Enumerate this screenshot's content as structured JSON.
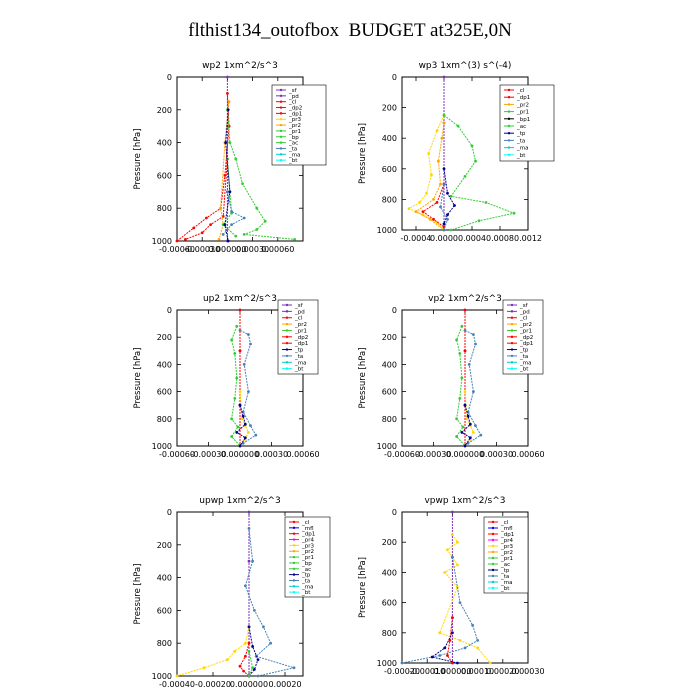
{
  "page_title": "flthist134_outofbox  BUDGET at325E,0N",
  "colors": {
    "sf": "#7b2fbf",
    "pd": "#7b2fbf",
    "cl": "#ff0000",
    "dp2": "#ff0000",
    "dp1": "#ff0000",
    "pr3": "#ffd700",
    "pr2": "#ffa500",
    "pr1": "#32cd32",
    "bp": "#32cd32",
    "ac": "#32cd32",
    "tp": "#00008b",
    "ta": "#4682b4",
    "ma": "#00ced1",
    "bt": "#00ffff",
    "mfl": "#0000ff",
    "pr4": "#ff00ff"
  },
  "chart_data": [
    {
      "type": "line",
      "title": "wp2  1xm^2/s^3",
      "ylabel": "Pressure [hPa]",
      "ylim": [
        1000,
        0
      ],
      "xlim": [
        -0.0006,
        0.0009
      ],
      "xticks": [
        "-0.00060",
        "-0.00030",
        "0.000000",
        "0.00030",
        "0.00060"
      ],
      "xtick_values": [
        -0.0006,
        -0.0003,
        0,
        0.0003,
        0.0006
      ],
      "yticks": [
        "0",
        "200",
        "400",
        "600",
        "800",
        "1000"
      ],
      "legend": [
        "_sf",
        "_pd",
        "_cl",
        "_dp2",
        "_dp1",
        "_pr3",
        "_pr2",
        "_pr1",
        "_bp",
        "_ac",
        "_ta",
        "_ma",
        "_bt"
      ],
      "series": [
        {
          "name": "_sf",
          "color": "#7b2fbf",
          "x": [
            0,
            0,
            0,
            0
          ],
          "y": [
            0,
            300,
            700,
            1000
          ]
        },
        {
          "name": "_cl",
          "color": "#ff0000",
          "x": [
            0,
            2e-05,
            -3e-05,
            -8e-05,
            -0.00025,
            -0.0004,
            -0.0006
          ],
          "y": [
            100,
            300,
            600,
            800,
            860,
            920,
            1000
          ]
        },
        {
          "name": "_dp1",
          "color": "#ff0000",
          "x": [
            0,
            -5e-05,
            -0.0002,
            -0.0003,
            -0.0005
          ],
          "y": [
            500,
            850,
            900,
            950,
            990
          ]
        },
        {
          "name": "_pr2",
          "color": "#ffa500",
          "x": [
            2e-05,
            -3e-05,
            -8e-05,
            -5e-05,
            -0.0001
          ],
          "y": [
            150,
            400,
            800,
            900,
            990
          ]
        },
        {
          "name": "_pr1",
          "color": "#32cd32",
          "x": [
            0,
            3e-05,
            0.0001,
            0.00018,
            0.00035,
            0.00045,
            0.00035,
            0.0002,
            0.0008
          ],
          "y": [
            200,
            400,
            500,
            650,
            800,
            880,
            930,
            960,
            990
          ]
        },
        {
          "name": "_ac",
          "color": "#32cd32",
          "x": [
            0,
            5e-05,
            -5e-05,
            0.0001
          ],
          "y": [
            500,
            830,
            900,
            970
          ]
        },
        {
          "name": "_ta",
          "color": "#4682b4",
          "x": [
            0,
            5e-05,
            0.0002,
            5e-05,
            -5e-05
          ],
          "y": [
            700,
            820,
            860,
            900,
            960
          ]
        },
        {
          "name": "_bt",
          "color": "#00008b",
          "x": [
            1e-05,
            -2e-05,
            3e-05,
            -3e-05,
            1e-05
          ],
          "y": [
            200,
            400,
            700,
            900,
            1000
          ]
        }
      ]
    },
    {
      "type": "line",
      "title": "wp3  1xm^(3) s^(-4)",
      "ylabel": "Pressure [hPa]",
      "ylim": [
        1000,
        0
      ],
      "xlim": [
        -0.0006,
        0.0012
      ],
      "xticks": [
        "-0.0004",
        "0.0000",
        "0.0004",
        "0.0008",
        "0.0012"
      ],
      "xtick_values": [
        -0.0004,
        0,
        0.0004,
        0.0008,
        0.0012
      ],
      "yticks": [
        "0",
        "200",
        "400",
        "600",
        "800",
        "1000"
      ],
      "legend": [
        "_cl",
        "_dp1",
        "_pr2",
        "_pr1",
        "_bp1",
        "_ac",
        "_tp",
        "_ta",
        "_ma",
        "_bt"
      ],
      "series": [
        {
          "name": "_cl",
          "color": "#7b2fbf",
          "x": [
            0,
            0,
            0,
            0
          ],
          "y": [
            0,
            300,
            700,
            1000
          ]
        },
        {
          "name": "_pr2",
          "color": "#ffd700",
          "x": [
            0,
            -0.0001,
            -0.00022,
            -0.00018,
            -0.00025,
            -0.00035,
            -0.0005,
            -0.0003,
            -0.0001,
            0
          ],
          "y": [
            250,
            350,
            500,
            640,
            760,
            820,
            860,
            900,
            950,
            1000
          ]
        },
        {
          "name": "_pr1",
          "color": "#ffa500",
          "x": [
            0,
            -3e-05,
            -8e-05,
            -5e-05,
            -0.00015,
            -0.0004,
            -0.0002,
            0
          ],
          "y": [
            300,
            400,
            550,
            700,
            800,
            880,
            930,
            1000
          ]
        },
        {
          "name": "_bp1",
          "color": "#32cd32",
          "x": [
            0,
            0.0002,
            0.0004,
            0.00045,
            0.0003,
            0.0001,
            0.0006,
            0.001,
            0.0005,
            0.0001
          ],
          "y": [
            250,
            320,
            450,
            550,
            650,
            780,
            820,
            890,
            940,
            1000
          ]
        },
        {
          "name": "_dp1",
          "color": "#ff0000",
          "x": [
            0,
            -0.0001,
            -0.0003,
            -0.00015,
            0
          ],
          "y": [
            700,
            820,
            880,
            930,
            980
          ]
        },
        {
          "name": "_tp",
          "color": "#00008b",
          "x": [
            0,
            5e-05,
            0.00015,
            5e-05,
            0
          ],
          "y": [
            600,
            760,
            840,
            900,
            960
          ]
        },
        {
          "name": "_ta",
          "color": "#4682b4",
          "x": [
            0,
            -5e-05,
            5e-05,
            0
          ],
          "y": [
            700,
            850,
            930,
            1000
          ]
        }
      ]
    },
    {
      "type": "line",
      "title": "up2  1xm^2/s^3",
      "ylabel": "Pressure [hPa]",
      "ylim": [
        1000,
        0
      ],
      "xlim": [
        -0.0006,
        0.0006
      ],
      "xticks": [
        "-0.00060",
        "-0.00030",
        "0.000000",
        "0.00030",
        "0.00060"
      ],
      "xtick_values": [
        -0.0006,
        -0.0003,
        0,
        0.0003,
        0.0006
      ],
      "yticks": [
        "0",
        "200",
        "400",
        "600",
        "800",
        "1000"
      ],
      "legend": [
        "_sf",
        "_pd",
        "_cl",
        "_pr2",
        "_pr1",
        "_dp2",
        "_dp1",
        "_tp",
        "_ta",
        "_ma",
        "_bt"
      ],
      "series": [
        {
          "name": "_sf",
          "color": "#7b2fbf",
          "x": [
            0,
            0,
            0,
            0
          ],
          "y": [
            0,
            300,
            700,
            1000
          ]
        },
        {
          "name": "_cl",
          "color": "#ff0000",
          "x": [
            0,
            0,
            0,
            0
          ],
          "y": [
            0,
            300,
            700,
            1000
          ]
        },
        {
          "name": "_pr1",
          "color": "#32cd32",
          "x": [
            -3e-05,
            -8e-05,
            -5e-05,
            -3e-05,
            -5e-05,
            -8e-05,
            -2e-05,
            -8e-05,
            0
          ],
          "y": [
            120,
            220,
            320,
            500,
            650,
            800,
            860,
            930,
            1000
          ]
        },
        {
          "name": "_pr2",
          "color": "#ffd700",
          "x": [
            0,
            2e-05,
            5e-05,
            8e-05,
            5e-05,
            0
          ],
          "y": [
            600,
            800,
            850,
            900,
            950,
            1000
          ]
        },
        {
          "name": "_tp",
          "color": "#4682b4",
          "x": [
            0,
            8e-05,
            0.0001,
            4e-05,
            8e-05,
            3e-05,
            0.0001,
            0.00015,
            3e-05
          ],
          "y": [
            150,
            180,
            250,
            400,
            600,
            750,
            850,
            920,
            980
          ]
        },
        {
          "name": "_dp1",
          "color": "#00008b",
          "x": [
            0,
            3e-05,
            5e-05,
            -3e-05,
            5e-05,
            0
          ],
          "y": [
            700,
            780,
            840,
            900,
            940,
            1000
          ]
        }
      ]
    },
    {
      "type": "line",
      "title": "vp2  1xm^2/s^3",
      "ylabel": "Pressure [hPa]",
      "ylim": [
        1000,
        0
      ],
      "xlim": [
        -0.0006,
        0.0006
      ],
      "xticks": [
        "-0.00060",
        "-0.00030",
        "0.000000",
        "0.00030",
        "0.00060"
      ],
      "xtick_values": [
        -0.0006,
        -0.0003,
        0,
        0.0003,
        0.0006
      ],
      "yticks": [
        "0",
        "200",
        "400",
        "600",
        "800",
        "1000"
      ],
      "legend": [
        "_sf",
        "_pd",
        "_cl",
        "_pr2",
        "_pr1",
        "_dp2",
        "_dp1",
        "_tp",
        "_ta",
        "_ma",
        "_bt"
      ],
      "series": [
        {
          "name": "_sf",
          "color": "#7b2fbf",
          "x": [
            0,
            0,
            0,
            0
          ],
          "y": [
            0,
            300,
            700,
            1000
          ]
        },
        {
          "name": "_cl",
          "color": "#ff0000",
          "x": [
            0,
            0,
            0,
            0
          ],
          "y": [
            0,
            300,
            700,
            1000
          ]
        },
        {
          "name": "_pr1",
          "color": "#32cd32",
          "x": [
            -3e-05,
            -8e-05,
            -5e-05,
            -3e-05,
            -5e-05,
            -8e-05,
            -2e-05,
            -8e-05,
            0
          ],
          "y": [
            120,
            220,
            320,
            500,
            650,
            800,
            860,
            930,
            1000
          ]
        },
        {
          "name": "_pr2",
          "color": "#ffd700",
          "x": [
            0,
            2e-05,
            5e-05,
            8e-05,
            5e-05,
            0
          ],
          "y": [
            600,
            800,
            850,
            900,
            950,
            1000
          ]
        },
        {
          "name": "_tp",
          "color": "#4682b4",
          "x": [
            0,
            8e-05,
            0.0001,
            4e-05,
            8e-05,
            3e-05,
            0.0001,
            0.00015,
            3e-05
          ],
          "y": [
            150,
            180,
            250,
            400,
            600,
            750,
            850,
            920,
            980
          ]
        },
        {
          "name": "_dp1",
          "color": "#00008b",
          "x": [
            0,
            3e-05,
            5e-05,
            -3e-05,
            5e-05,
            0
          ],
          "y": [
            700,
            780,
            840,
            900,
            940,
            1000
          ]
        }
      ]
    },
    {
      "type": "line",
      "title": "upwp  1xm^2/s^3",
      "ylabel": "Pressure [hPa]",
      "ylim": [
        1000,
        0
      ],
      "xlim": [
        -0.0004,
        0.0003
      ],
      "xticks": [
        "-0.00040",
        "-0.00020",
        "0.000000",
        "0.00020"
      ],
      "xtick_values": [
        -0.0004,
        -0.0002,
        0,
        0.0002
      ],
      "yticks": [
        "0",
        "200",
        "400",
        "600",
        "800",
        "1000"
      ],
      "legend": [
        "_cl",
        "_mfl",
        "_dp1",
        "_pr4",
        "_pr3",
        "_pr2",
        "_pr1",
        "_bp",
        "_ac",
        "_tp",
        "_ta",
        "_ma",
        "_bt"
      ],
      "series": [
        {
          "name": "_cl",
          "color": "#7b2fbf",
          "x": [
            0,
            0,
            0,
            0
          ],
          "y": [
            0,
            300,
            700,
            1000
          ]
        },
        {
          "name": "_pr2",
          "color": "#ffd700",
          "x": [
            0,
            -2e-05,
            -8e-05,
            -0.00012,
            -0.00025,
            -0.0004
          ],
          "y": [
            700,
            800,
            850,
            900,
            950,
            1000
          ]
        },
        {
          "name": "_dp1",
          "color": "#ff0000",
          "x": [
            0,
            -2e-05,
            -5e-05,
            -3e-05,
            0
          ],
          "y": [
            800,
            880,
            940,
            970,
            1000
          ]
        },
        {
          "name": "_ta",
          "color": "#4682b4",
          "x": [
            0,
            2e-05,
            -2e-05,
            3e-05,
            8e-05,
            0.00012,
            4e-05,
            0.00025,
            5e-05
          ],
          "y": [
            100,
            300,
            450,
            600,
            700,
            800,
            880,
            950,
            1000
          ]
        },
        {
          "name": "_tp",
          "color": "#00008b",
          "x": [
            0,
            2e-05,
            5e-05,
            3e-05,
            0
          ],
          "y": [
            700,
            820,
            900,
            960,
            1000
          ]
        },
        {
          "name": "_ac",
          "color": "#32cd32",
          "x": [
            0,
            2e-05,
            0
          ],
          "y": [
            850,
            950,
            1000
          ]
        }
      ]
    },
    {
      "type": "line",
      "title": "vpwp  1xm^2/s^3",
      "ylabel": "Pressure [hPa]",
      "ylim": [
        1000,
        0
      ],
      "xlim": [
        -0.0002,
        0.0003
      ],
      "xticks": [
        "-0.00020",
        "-0.00010",
        "0.000000",
        "0.00010",
        "0.00020",
        "0.00030"
      ],
      "xtick_values": [
        -0.0002,
        -0.0001,
        0,
        0.0001,
        0.0002,
        0.0003
      ],
      "yticks": [
        "0",
        "200",
        "400",
        "600",
        "800",
        "1000"
      ],
      "legend": [
        "_cl",
        "_mfl",
        "_dp1",
        "_pr4",
        "_pr3",
        "_pr2",
        "_pr1",
        "_ac",
        "_tp",
        "_ta",
        "_ma",
        "_bt"
      ],
      "series": [
        {
          "name": "_cl",
          "color": "#7b2fbf",
          "x": [
            0,
            0,
            0,
            0
          ],
          "y": [
            0,
            300,
            700,
            1000
          ]
        },
        {
          "name": "_pr2",
          "color": "#ffd700",
          "x": [
            0,
            2e-05,
            -2e-05,
            2e-05,
            -3e-05,
            2e-05,
            -5e-05,
            3e-05,
            0.0001,
            0.00015
          ],
          "y": [
            150,
            200,
            250,
            350,
            400,
            500,
            800,
            850,
            900,
            1000
          ]
        },
        {
          "name": "_ta",
          "color": "#4682b4",
          "x": [
            0,
            3e-05,
            8e-05,
            0.0001,
            5e-05,
            -5e-05,
            -0.0002
          ],
          "y": [
            300,
            600,
            750,
            850,
            900,
            950,
            1000
          ]
        },
        {
          "name": "_dp1",
          "color": "#ff0000",
          "x": [
            0,
            -1e-05,
            -2e-05,
            0
          ],
          "y": [
            700,
            850,
            950,
            1000
          ]
        },
        {
          "name": "_tp",
          "color": "#00008b",
          "x": [
            0,
            -3e-05,
            -8e-05,
            2e-05
          ],
          "y": [
            800,
            900,
            960,
            1000
          ]
        }
      ]
    }
  ]
}
